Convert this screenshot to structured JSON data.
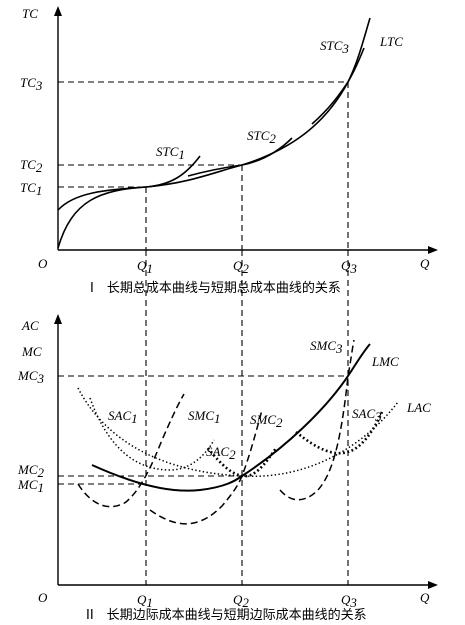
{
  "panel1": {
    "y_axis_label": "TC",
    "x_axis_label": "Q",
    "origin_label": "O",
    "y_ticks": [
      {
        "main": "TC",
        "sub": "3"
      },
      {
        "main": "TC",
        "sub": "2"
      },
      {
        "main": "TC",
        "sub": "1"
      }
    ],
    "x_ticks": [
      {
        "main": "Q",
        "sub": "1"
      },
      {
        "main": "Q",
        "sub": "2"
      },
      {
        "main": "Q",
        "sub": "3"
      }
    ],
    "curve_labels": {
      "stc1": {
        "main": "STC",
        "sub": "1"
      },
      "stc2": {
        "main": "STC",
        "sub": "2"
      },
      "stc3": {
        "main": "STC",
        "sub": "3"
      },
      "ltc": {
        "main": "LTC",
        "sub": ""
      }
    },
    "caption": "I　长期总成本曲线与短期总成本曲线的关系"
  },
  "panel2": {
    "y_axis_label_top": "AC",
    "y_axis_label_bottom": "MC",
    "x_axis_label": "Q",
    "origin_label": "O",
    "y_ticks": [
      {
        "main": "MC",
        "sub": "3"
      },
      {
        "main": "MC",
        "sub": "2"
      },
      {
        "main": "MC",
        "sub": "1"
      }
    ],
    "x_ticks": [
      {
        "main": "Q",
        "sub": "1"
      },
      {
        "main": "Q",
        "sub": "2"
      },
      {
        "main": "Q",
        "sub": "3"
      }
    ],
    "curve_labels": {
      "smc3": {
        "main": "SMC",
        "sub": "3"
      },
      "lmc": {
        "main": "LMC",
        "sub": ""
      },
      "lac": {
        "main": "LAC",
        "sub": ""
      },
      "sac1": {
        "main": "SAC",
        "sub": "1"
      },
      "smc1": {
        "main": "SMC",
        "sub": "1"
      },
      "smc2": {
        "main": "SMC",
        "sub": "2"
      },
      "sac2": {
        "main": "SAC",
        "sub": "2"
      },
      "sac3": {
        "main": "SAC",
        "sub": "3"
      }
    },
    "caption": "II　长期边际成本曲线与短期边际成本曲线的关系"
  }
}
